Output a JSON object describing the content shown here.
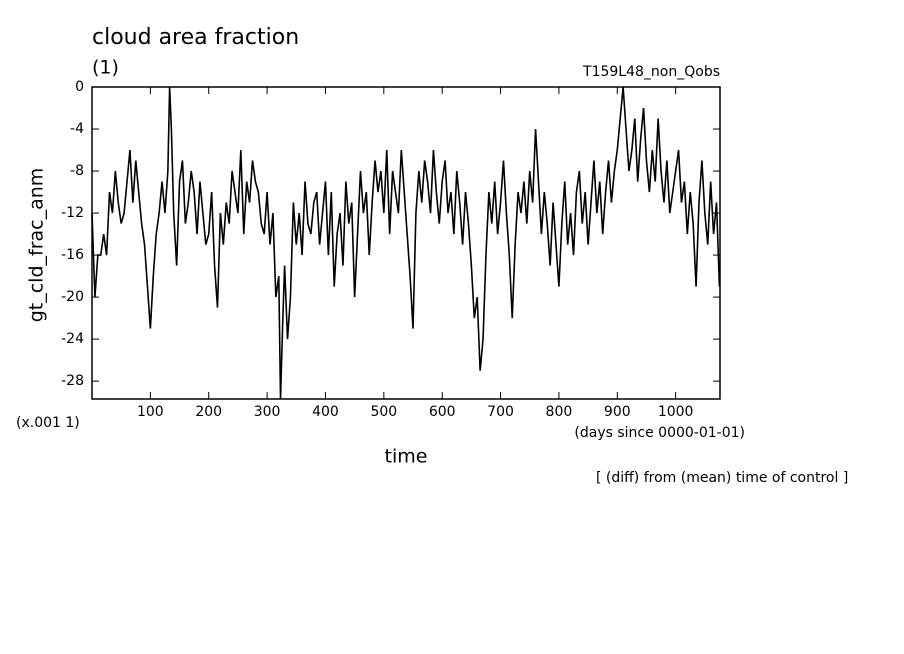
{
  "chart_data": {
    "type": "line",
    "title": "cloud area fraction",
    "subtitle": "(1)",
    "run_label": "T159L48_non_Qobs",
    "ylabel": "gt_cld_frac_anm",
    "y_unit": "(x.001 1)",
    "xlabel": "time",
    "x_unit": "(days since 0000-01-01)",
    "annotation": "[ (diff) from (mean) time of control ]",
    "color": "#000000",
    "xlim": [
      0,
      1076
    ],
    "ylim": [
      -29.7,
      0
    ],
    "xticks": [
      100,
      200,
      300,
      400,
      500,
      600,
      700,
      800,
      900,
      1000
    ],
    "yticks": [
      -28,
      -24,
      -20,
      -16,
      -12,
      -8,
      -4,
      0
    ],
    "x": [
      0,
      5,
      10,
      15,
      20,
      25,
      30,
      35,
      40,
      45,
      50,
      55,
      60,
      65,
      70,
      75,
      80,
      85,
      90,
      95,
      100,
      105,
      110,
      115,
      120,
      125,
      130,
      133,
      136,
      140,
      145,
      150,
      155,
      160,
      165,
      170,
      175,
      180,
      185,
      190,
      195,
      200,
      205,
      210,
      215,
      220,
      225,
      230,
      235,
      240,
      245,
      250,
      255,
      260,
      265,
      270,
      275,
      280,
      285,
      290,
      295,
      300,
      305,
      310,
      315,
      320,
      323,
      327,
      330,
      335,
      340,
      345,
      350,
      355,
      360,
      365,
      370,
      375,
      380,
      385,
      390,
      395,
      400,
      405,
      410,
      415,
      420,
      425,
      430,
      435,
      440,
      445,
      450,
      455,
      460,
      465,
      470,
      475,
      480,
      485,
      490,
      495,
      500,
      505,
      510,
      515,
      520,
      525,
      530,
      535,
      540,
      545,
      550,
      555,
      560,
      565,
      570,
      575,
      580,
      585,
      590,
      595,
      600,
      605,
      610,
      615,
      620,
      625,
      630,
      635,
      640,
      645,
      650,
      655,
      660,
      665,
      670,
      675,
      680,
      685,
      690,
      695,
      700,
      705,
      710,
      715,
      720,
      725,
      730,
      735,
      740,
      745,
      750,
      755,
      760,
      765,
      770,
      775,
      780,
      785,
      790,
      795,
      800,
      805,
      810,
      815,
      820,
      825,
      830,
      835,
      840,
      845,
      850,
      855,
      860,
      865,
      870,
      875,
      880,
      885,
      890,
      895,
      900,
      905,
      910,
      915,
      920,
      925,
      930,
      935,
      940,
      945,
      950,
      955,
      960,
      965,
      970,
      975,
      980,
      985,
      990,
      995,
      1000,
      1005,
      1010,
      1015,
      1020,
      1025,
      1030,
      1035,
      1040,
      1045,
      1050,
      1055,
      1060,
      1065,
      1070,
      1075
    ],
    "values": [
      -12,
      -20,
      -16,
      -16,
      -14,
      -16,
      -10,
      -12,
      -8,
      -11,
      -13,
      -12,
      -9,
      -6,
      -11,
      -7,
      -10,
      -13,
      -15,
      -19,
      -23,
      -18,
      -14,
      -12,
      -9,
      -12,
      -8,
      0,
      -4,
      -12,
      -17,
      -9,
      -7,
      -13,
      -11,
      -8,
      -10,
      -14,
      -9,
      -12,
      -15,
      -14,
      -10,
      -17,
      -21,
      -12,
      -15,
      -11,
      -13,
      -8,
      -10,
      -12,
      -6,
      -14,
      -9,
      -11,
      -7,
      -9,
      -10,
      -13,
      -14,
      -10,
      -15,
      -12,
      -20,
      -18,
      -29.7,
      -22,
      -17,
      -24,
      -20,
      -11,
      -15,
      -12,
      -16,
      -9,
      -13,
      -14,
      -11,
      -10,
      -15,
      -12,
      -9,
      -16,
      -10,
      -19,
      -14,
      -12,
      -17,
      -9,
      -13,
      -11,
      -20,
      -14,
      -8,
      -12,
      -10,
      -16,
      -11,
      -7,
      -10,
      -8,
      -12,
      -6,
      -14,
      -8,
      -10,
      -12,
      -6,
      -10,
      -14,
      -18,
      -23,
      -12,
      -8,
      -11,
      -7,
      -9,
      -12,
      -6,
      -10,
      -13,
      -9,
      -7,
      -12,
      -10,
      -14,
      -8,
      -11,
      -15,
      -10,
      -13,
      -17,
      -22,
      -20,
      -27,
      -24,
      -16,
      -10,
      -13,
      -9,
      -14,
      -11,
      -7,
      -12,
      -16,
      -22,
      -15,
      -10,
      -12,
      -9,
      -13,
      -8,
      -11,
      -4,
      -9,
      -14,
      -10,
      -13,
      -17,
      -11,
      -15,
      -19,
      -13,
      -9,
      -15,
      -12,
      -16,
      -10,
      -8,
      -13,
      -10,
      -15,
      -11,
      -7,
      -12,
      -9,
      -14,
      -10,
      -7,
      -11,
      -8,
      -6,
      -3,
      0,
      -4,
      -8,
      -6,
      -3,
      -9,
      -5,
      -2,
      -7,
      -10,
      -6,
      -9,
      -3,
      -8,
      -11,
      -7,
      -12,
      -10,
      -8,
      -6,
      -11,
      -9,
      -14,
      -10,
      -13,
      -19,
      -11,
      -7,
      -12,
      -15,
      -9,
      -14,
      -11,
      -19
    ]
  }
}
